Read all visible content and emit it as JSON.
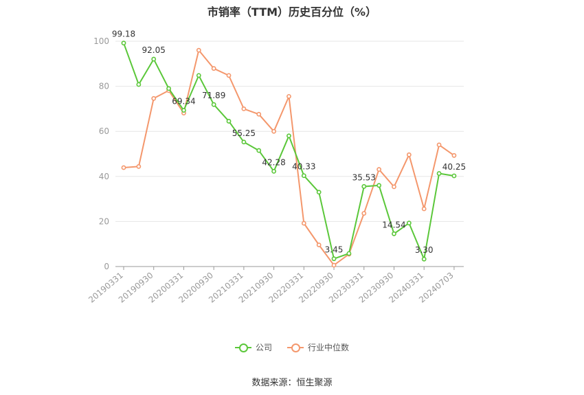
{
  "chart_data": {
    "type": "line",
    "title": "市销率（TTM）历史百分位（%）",
    "xlabel": "",
    "ylabel": "",
    "ylim": [
      0,
      100
    ],
    "yticks": [
      0,
      20,
      40,
      60,
      80,
      100
    ],
    "grid": true,
    "legend_position": "bottom",
    "x_tick_labels": [
      "20190331",
      "20190930",
      "20200331",
      "20200930",
      "20210331",
      "20210930",
      "20220331",
      "20220930",
      "20230331",
      "20230930",
      "20240331",
      "20240703"
    ],
    "x_tick_indices": [
      0,
      2,
      4,
      6,
      8,
      10,
      12,
      14,
      16,
      18,
      20,
      22
    ],
    "x_count": 23,
    "series": [
      {
        "name": "公司",
        "color": "#5ac739",
        "values": [
          99.18,
          80.8,
          92.05,
          79.0,
          69.34,
          84.8,
          71.89,
          64.5,
          55.25,
          51.5,
          42.28,
          58.0,
          40.33,
          33.0,
          3.45,
          5.8,
          35.53,
          36.0,
          14.54,
          19.3,
          3.3,
          41.3,
          40.25
        ],
        "labels": {
          "0": "99.18",
          "2": "92.05",
          "4": "69.34",
          "6": "71.89",
          "8": "55.25",
          "10": "42.28",
          "12": "40.33",
          "14": "3.45",
          "16": "35.53",
          "18": "14.54",
          "20": "3.30",
          "22": "40.25"
        }
      },
      {
        "name": "行业中位数",
        "color": "#f4976c",
        "values": [
          43.9,
          44.4,
          74.6,
          78.1,
          68.1,
          96.0,
          87.9,
          84.8,
          70.0,
          67.6,
          60.0,
          75.5,
          19.2,
          9.6,
          0.6,
          5.5,
          23.6,
          43.1,
          35.4,
          49.6,
          25.6,
          54.0,
          49.3
        ]
      }
    ]
  },
  "source_text": "数据来源：恒生聚源"
}
